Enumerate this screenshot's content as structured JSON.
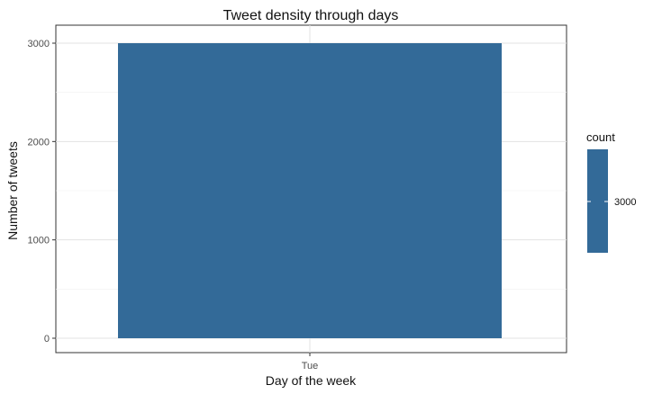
{
  "chart_data": {
    "type": "bar",
    "title": "Tweet density through days",
    "xlabel": "Day of the week",
    "ylabel": "Number of tweets",
    "categories": [
      "Tue"
    ],
    "values": [
      3000
    ],
    "ylim": [
      0,
      3000
    ],
    "yticks": [
      "0",
      "1000",
      "2000",
      "3000"
    ],
    "grid": true,
    "bar_color": "#336a98",
    "legend": {
      "position": "right",
      "title": "count",
      "labels": [
        "3000"
      ],
      "color": "#336a98"
    }
  }
}
